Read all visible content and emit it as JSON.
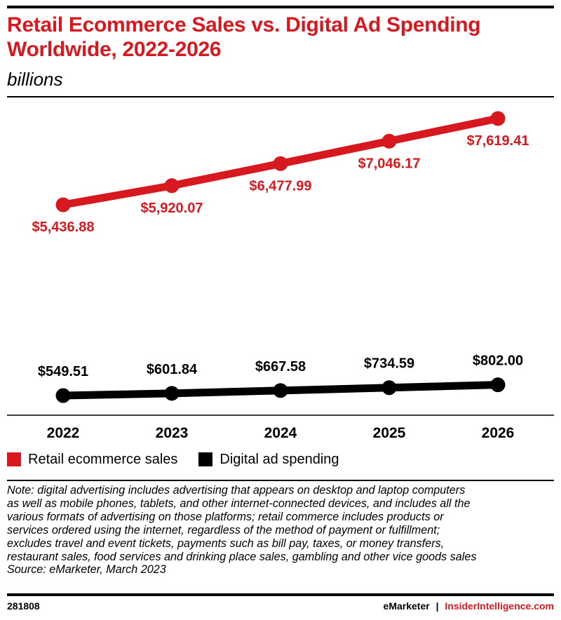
{
  "header": {
    "title_line1": "Retail Ecommerce Sales vs. Digital Ad Spending",
    "title_line2": "Worldwide, 2022-2026",
    "subtitle": "billions"
  },
  "chart_data": {
    "type": "line",
    "title": "Retail Ecommerce Sales vs. Digital Ad Spending Worldwide, 2022-2026",
    "subtitle": "billions",
    "x": [
      "2022",
      "2023",
      "2024",
      "2025",
      "2026"
    ],
    "xlabel": "",
    "ylabel": "billions",
    "grid": false,
    "legend_position": "bottom",
    "series": [
      {
        "name": "Retail ecommerce sales",
        "color": "#d7191f",
        "values": [
          5436.88,
          5920.07,
          6477.99,
          7046.17,
          7619.41
        ],
        "labels": [
          "$5,436.88",
          "$5,920.07",
          "$6,477.99",
          "$7,046.17",
          "$7,619.41"
        ]
      },
      {
        "name": "Digital ad spending",
        "color": "#000000",
        "values": [
          549.51,
          601.84,
          667.58,
          734.59,
          802.0
        ],
        "labels": [
          "$549.51",
          "$601.84",
          "$667.58",
          "$734.59",
          "$802.00"
        ]
      }
    ]
  },
  "legend": {
    "items": [
      {
        "label": "Retail ecommerce sales",
        "color": "#d7191f"
      },
      {
        "label": "Digital ad spending",
        "color": "#000000"
      }
    ]
  },
  "note": {
    "lines": [
      "Note: digital advertising includes advertising that appears on desktop and laptop computers",
      "as well as mobile phones, tablets, and other internet-connected devices, and includes all the",
      "various formats of advertising on those platforms; retail commerce includes products or",
      "services ordered using the internet, regardless of the method of payment or fulfillment;",
      "excludes travel and event tickets, payments such as bill pay, taxes, or money transfers,",
      "restaurant sales, food services and drinking place sales, gambling and other vice goods sales"
    ],
    "source": "Source: eMarketer, March 2023"
  },
  "footer": {
    "chart_id": "281808",
    "brand1": "eMarketer",
    "separator": "|",
    "brand2": "InsiderIntelligence.com"
  }
}
